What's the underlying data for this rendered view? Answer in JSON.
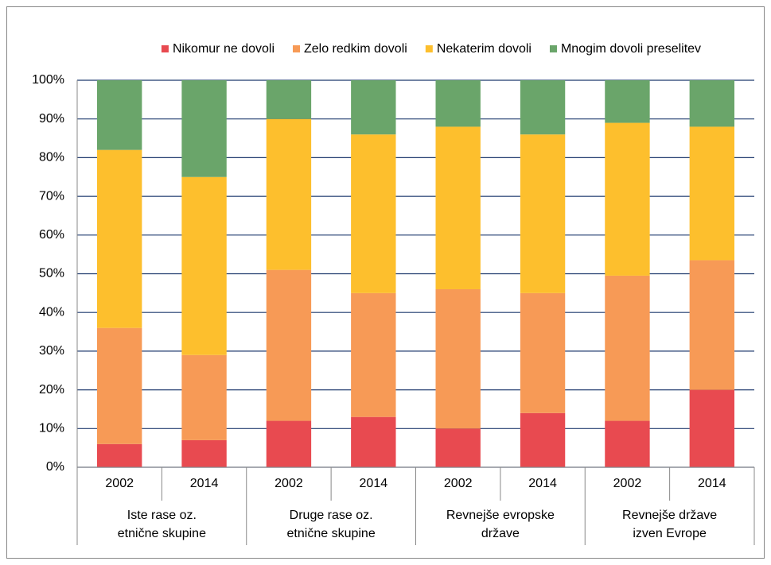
{
  "chart_data": {
    "type": "stacked_bar",
    "categories": [
      "2002",
      "2014",
      "2002",
      "2014",
      "2002",
      "2014",
      "2002",
      "2014"
    ],
    "groups": [
      {
        "lines": [
          "Iste rase oz.",
          "etnične skupine"
        ]
      },
      {
        "lines": [
          "Druge rase oz.",
          "etnične skupine"
        ]
      },
      {
        "lines": [
          "Revnejše evropske",
          "države"
        ]
      },
      {
        "lines": [
          "Revnejše države",
          "izven Evrope"
        ]
      }
    ],
    "series": [
      {
        "name": "Nikomur ne dovoli",
        "color": "#e84a50",
        "values": [
          6,
          7,
          12,
          13,
          10,
          14,
          12,
          20
        ]
      },
      {
        "name": "Zelo redkim dovoli",
        "color": "#f79a56",
        "values": [
          30,
          22,
          39,
          32,
          36,
          31,
          37.5,
          33.5
        ]
      },
      {
        "name": "Nekaterim dovoli",
        "color": "#fdbf2d",
        "values": [
          46,
          46,
          39,
          41,
          42,
          41,
          39.5,
          34.5
        ]
      },
      {
        "name": "Mnogim dovoli preselitev",
        "color": "#6aa56a",
        "values": [
          18,
          25,
          10,
          14,
          12,
          14,
          11,
          12
        ]
      }
    ],
    "ylim": [
      0,
      100
    ],
    "yticks": [
      {
        "value": 0,
        "label": "0%"
      },
      {
        "value": 10,
        "label": "10%"
      },
      {
        "value": 20,
        "label": "20%"
      },
      {
        "value": 30,
        "label": "30%"
      },
      {
        "value": 40,
        "label": "40%"
      },
      {
        "value": 50,
        "label": "50%"
      },
      {
        "value": 60,
        "label": "60%"
      },
      {
        "value": 70,
        "label": "70%"
      },
      {
        "value": 80,
        "label": "80%"
      },
      {
        "value": 90,
        "label": "90%"
      },
      {
        "value": 100,
        "label": "100%"
      }
    ],
    "grid": true,
    "legend": "top"
  }
}
